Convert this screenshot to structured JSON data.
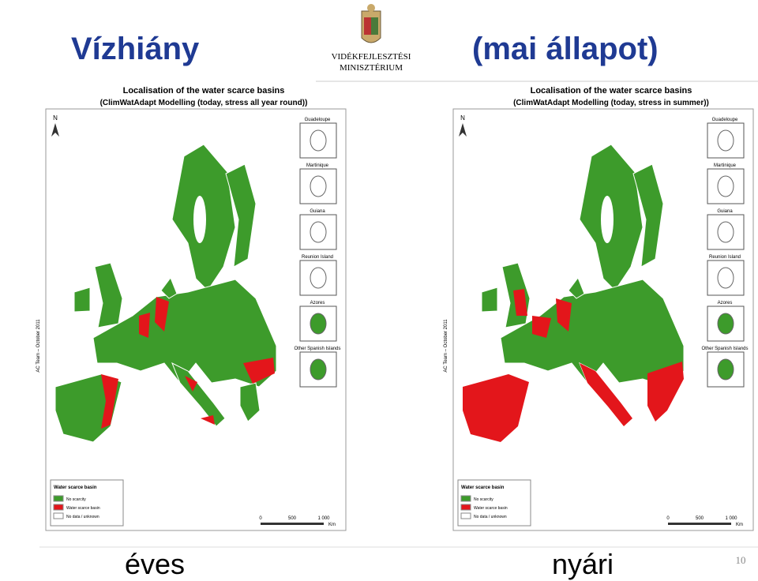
{
  "title": {
    "left": "Vízhiány",
    "right": "(mai állapot)"
  },
  "logo": {
    "line1": "VIDÉKFEJLESZTÉSI",
    "line2": "MINISZTÉRIUM"
  },
  "maps": [
    {
      "title": "Localisation of the water scarce basins",
      "subtitle": "(ClimWatAdapt Modelling (today, stress all year round))",
      "north": "N",
      "credit": "AC Team – October 2011",
      "insets": [
        "Guadeloupe",
        "Martinique",
        "Guiana",
        "Reunion Island",
        "Azores",
        "Other Spanish Islands"
      ],
      "legend": {
        "title": "Water scarce basin",
        "items": [
          "No scarcity",
          "Water scarce basin",
          "No data / unknown"
        ]
      },
      "scale": {
        "ticks": [
          "0",
          "500",
          "1 000"
        ],
        "unit": "Km"
      },
      "caption": "éves"
    },
    {
      "title": "Localisation of the water scarce basins",
      "subtitle": "(ClimWatAdapt Modelling (today, stress in summer))",
      "north": "N",
      "credit": "AC Team – October 2011",
      "insets": [
        "Guadeloupe",
        "Martinique",
        "Guiana",
        "Reunion Island",
        "Azores",
        "Other Spanish Islands"
      ],
      "legend": {
        "title": "Water scarce basin",
        "items": [
          "No scarcity",
          "Water scarce basin",
          "No data / unknown"
        ]
      },
      "scale": {
        "ticks": [
          "0",
          "500",
          "1 000"
        ],
        "unit": "Km"
      },
      "caption": "nyári"
    }
  ],
  "page_number": "10"
}
